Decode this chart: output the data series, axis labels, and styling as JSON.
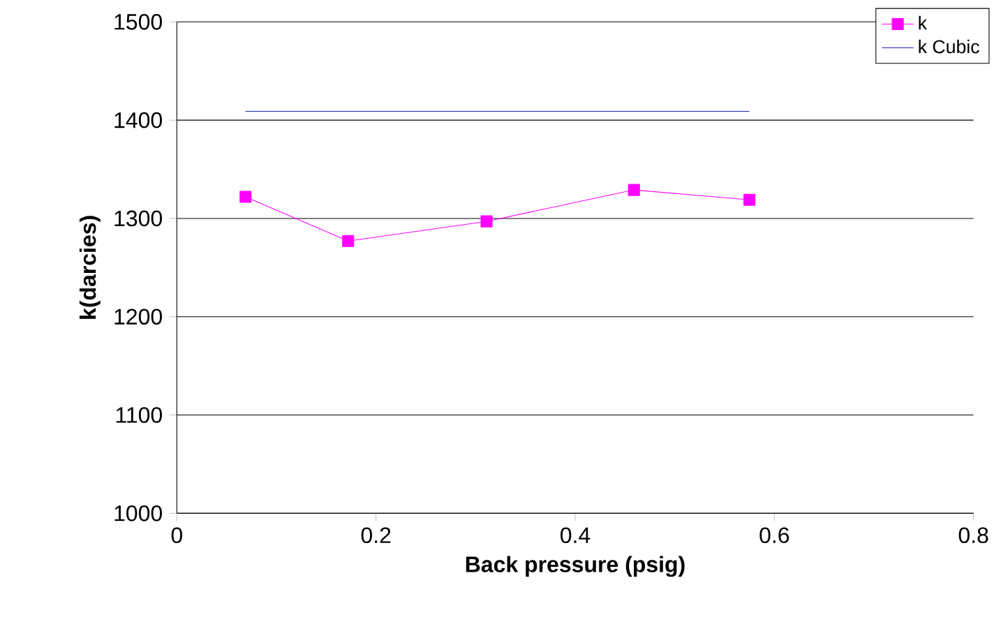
{
  "chart_data": {
    "type": "line",
    "xlabel": "Back pressure (psig)",
    "ylabel": "k(darcies)",
    "series": [
      {
        "name": "k",
        "color": "#ff00ff",
        "marker": "square",
        "x": [
          0.069,
          0.172,
          0.311,
          0.459,
          0.575
        ],
        "values": [
          1322,
          1277,
          1297,
          1329,
          1319
        ]
      },
      {
        "name": "k Cubic",
        "color": "#2020c0",
        "marker": "none",
        "x": [
          0.069,
          0.575
        ],
        "values": [
          1409,
          1409
        ]
      }
    ],
    "xlim": [
      0,
      0.8
    ],
    "xticks": [
      0,
      0.2,
      0.4,
      0.6,
      0.8
    ],
    "ylim": [
      1000,
      1500
    ],
    "yticks": [
      1000,
      1100,
      1200,
      1300,
      1400,
      1500
    ],
    "grid": "y",
    "legend": "top right"
  }
}
